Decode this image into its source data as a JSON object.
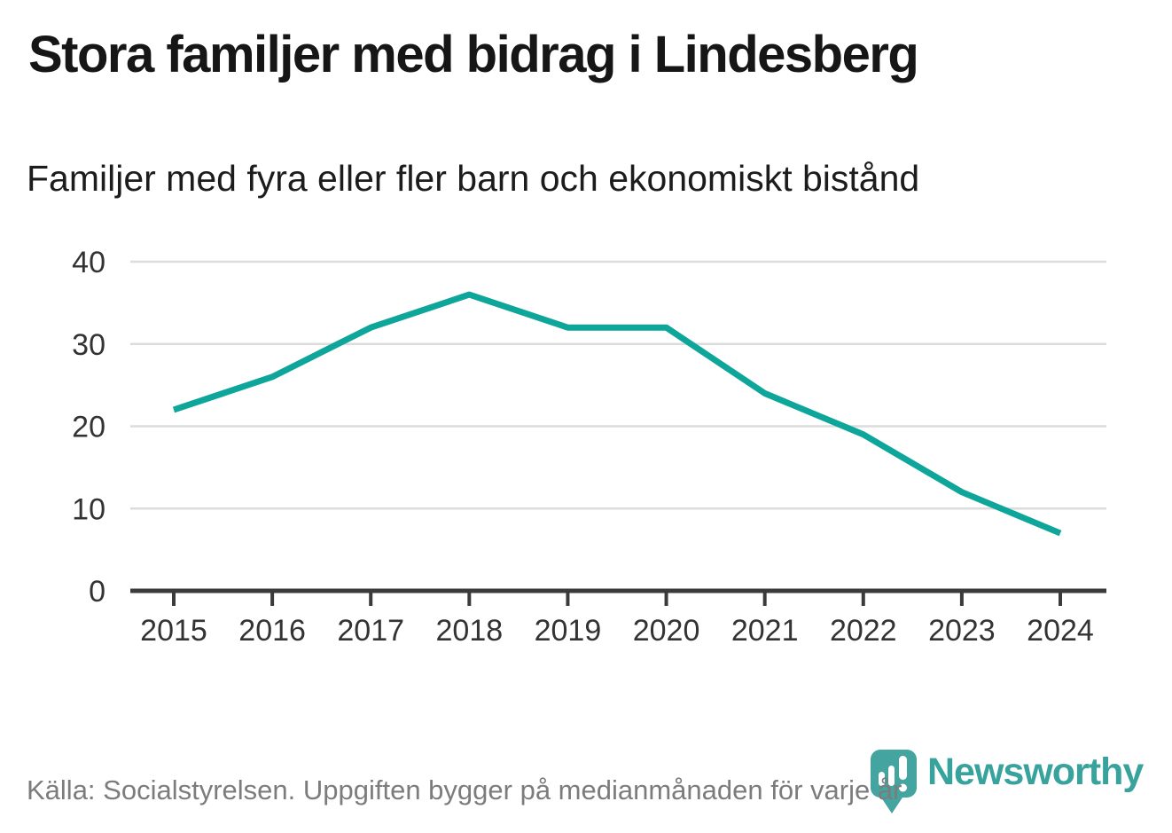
{
  "header": {
    "title": "Stora familjer med bidrag i Lindesberg",
    "subtitle": "Familjer med fyra eller fler barn och ekonomiskt bistånd"
  },
  "chart_data": {
    "type": "line",
    "title": "Stora familjer med bidrag i Lindesberg",
    "subtitle": "Familjer med fyra eller fler barn och ekonomiskt bistånd",
    "x": [
      "2015",
      "2016",
      "2017",
      "2018",
      "2019",
      "2020",
      "2021",
      "2022",
      "2023",
      "2024"
    ],
    "values": [
      22,
      26,
      32,
      36,
      32,
      32,
      24,
      19,
      12,
      7
    ],
    "series_name": "Familjer med fyra eller fler barn och ekonomiskt bistånd",
    "xlabel": "",
    "ylabel": "",
    "ylim": [
      0,
      40
    ],
    "yticks": [
      0,
      10,
      20,
      30,
      40
    ],
    "grid": true,
    "legend": false
  },
  "footer": {
    "source": "Källa: Socialstyrelsen. Uppgiften bygger på medianmånaden för varje år",
    "brand": "Newsworthy"
  },
  "colors": {
    "line": "#0ea69a",
    "grid": "#dcdcdc",
    "axis": "#3b3b3b",
    "tick_label": "#333333",
    "title": "#161616",
    "source": "#7c7c7c",
    "brand": "#37a39c",
    "brand_pin": "#44a49f"
  }
}
